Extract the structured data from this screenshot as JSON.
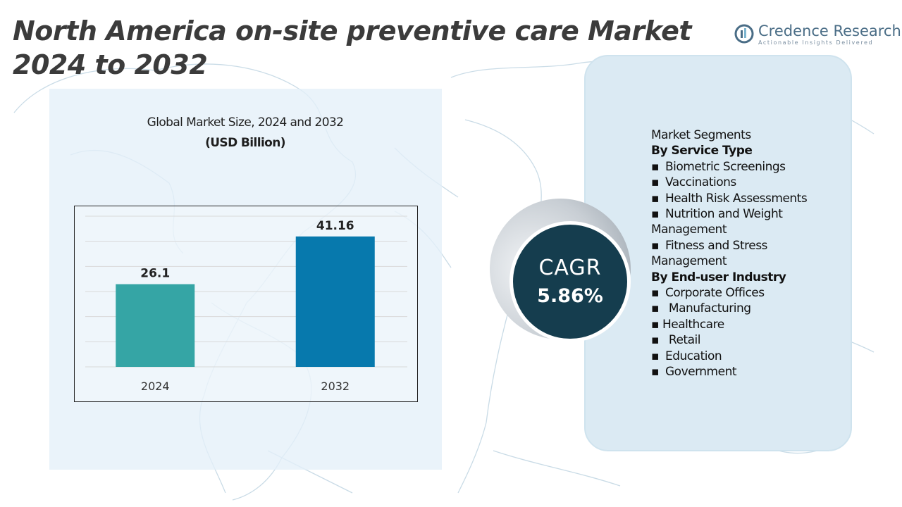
{
  "title": "North America on-site preventive care Market 2024 to 2032",
  "logo": {
    "name": "Credence Research",
    "tagline": "Actionable Insights Delivered"
  },
  "chart_data": {
    "type": "bar",
    "title": "Global Market Size, 2024 and 2032",
    "subtitle": "(USD Billion)",
    "categories": [
      "2024",
      "2032"
    ],
    "values": [
      26.1,
      41.16
    ],
    "value_labels": [
      "26.1",
      "41.16"
    ],
    "colors": [
      "#35a5a5",
      "#0779ad"
    ],
    "grid": true,
    "ylim": [
      0,
      48
    ]
  },
  "cagr": {
    "label": "CAGR",
    "value": "5.86%"
  },
  "segments": {
    "heading": "Market Segments",
    "service_heading": "By Service Type",
    "service_1": "Biometric Screenings",
    "service_2": "Vaccinations",
    "service_3": "Health Risk Assessments",
    "service_4a": "Nutrition and Weight",
    "service_4b": "Management",
    "service_5a": "Fitness and Stress",
    "service_5b": "Management",
    "industry_heading": "By End-user Industry",
    "industry_1": "Corporate Offices",
    "industry_2": "Manufacturing",
    "industry_3": "Healthcare",
    "industry_4": "Retail",
    "industry_5": "Education",
    "industry_6": "Government"
  },
  "colors": {
    "accent_dark": "#153d4e",
    "panel": "#dbeaf3"
  }
}
